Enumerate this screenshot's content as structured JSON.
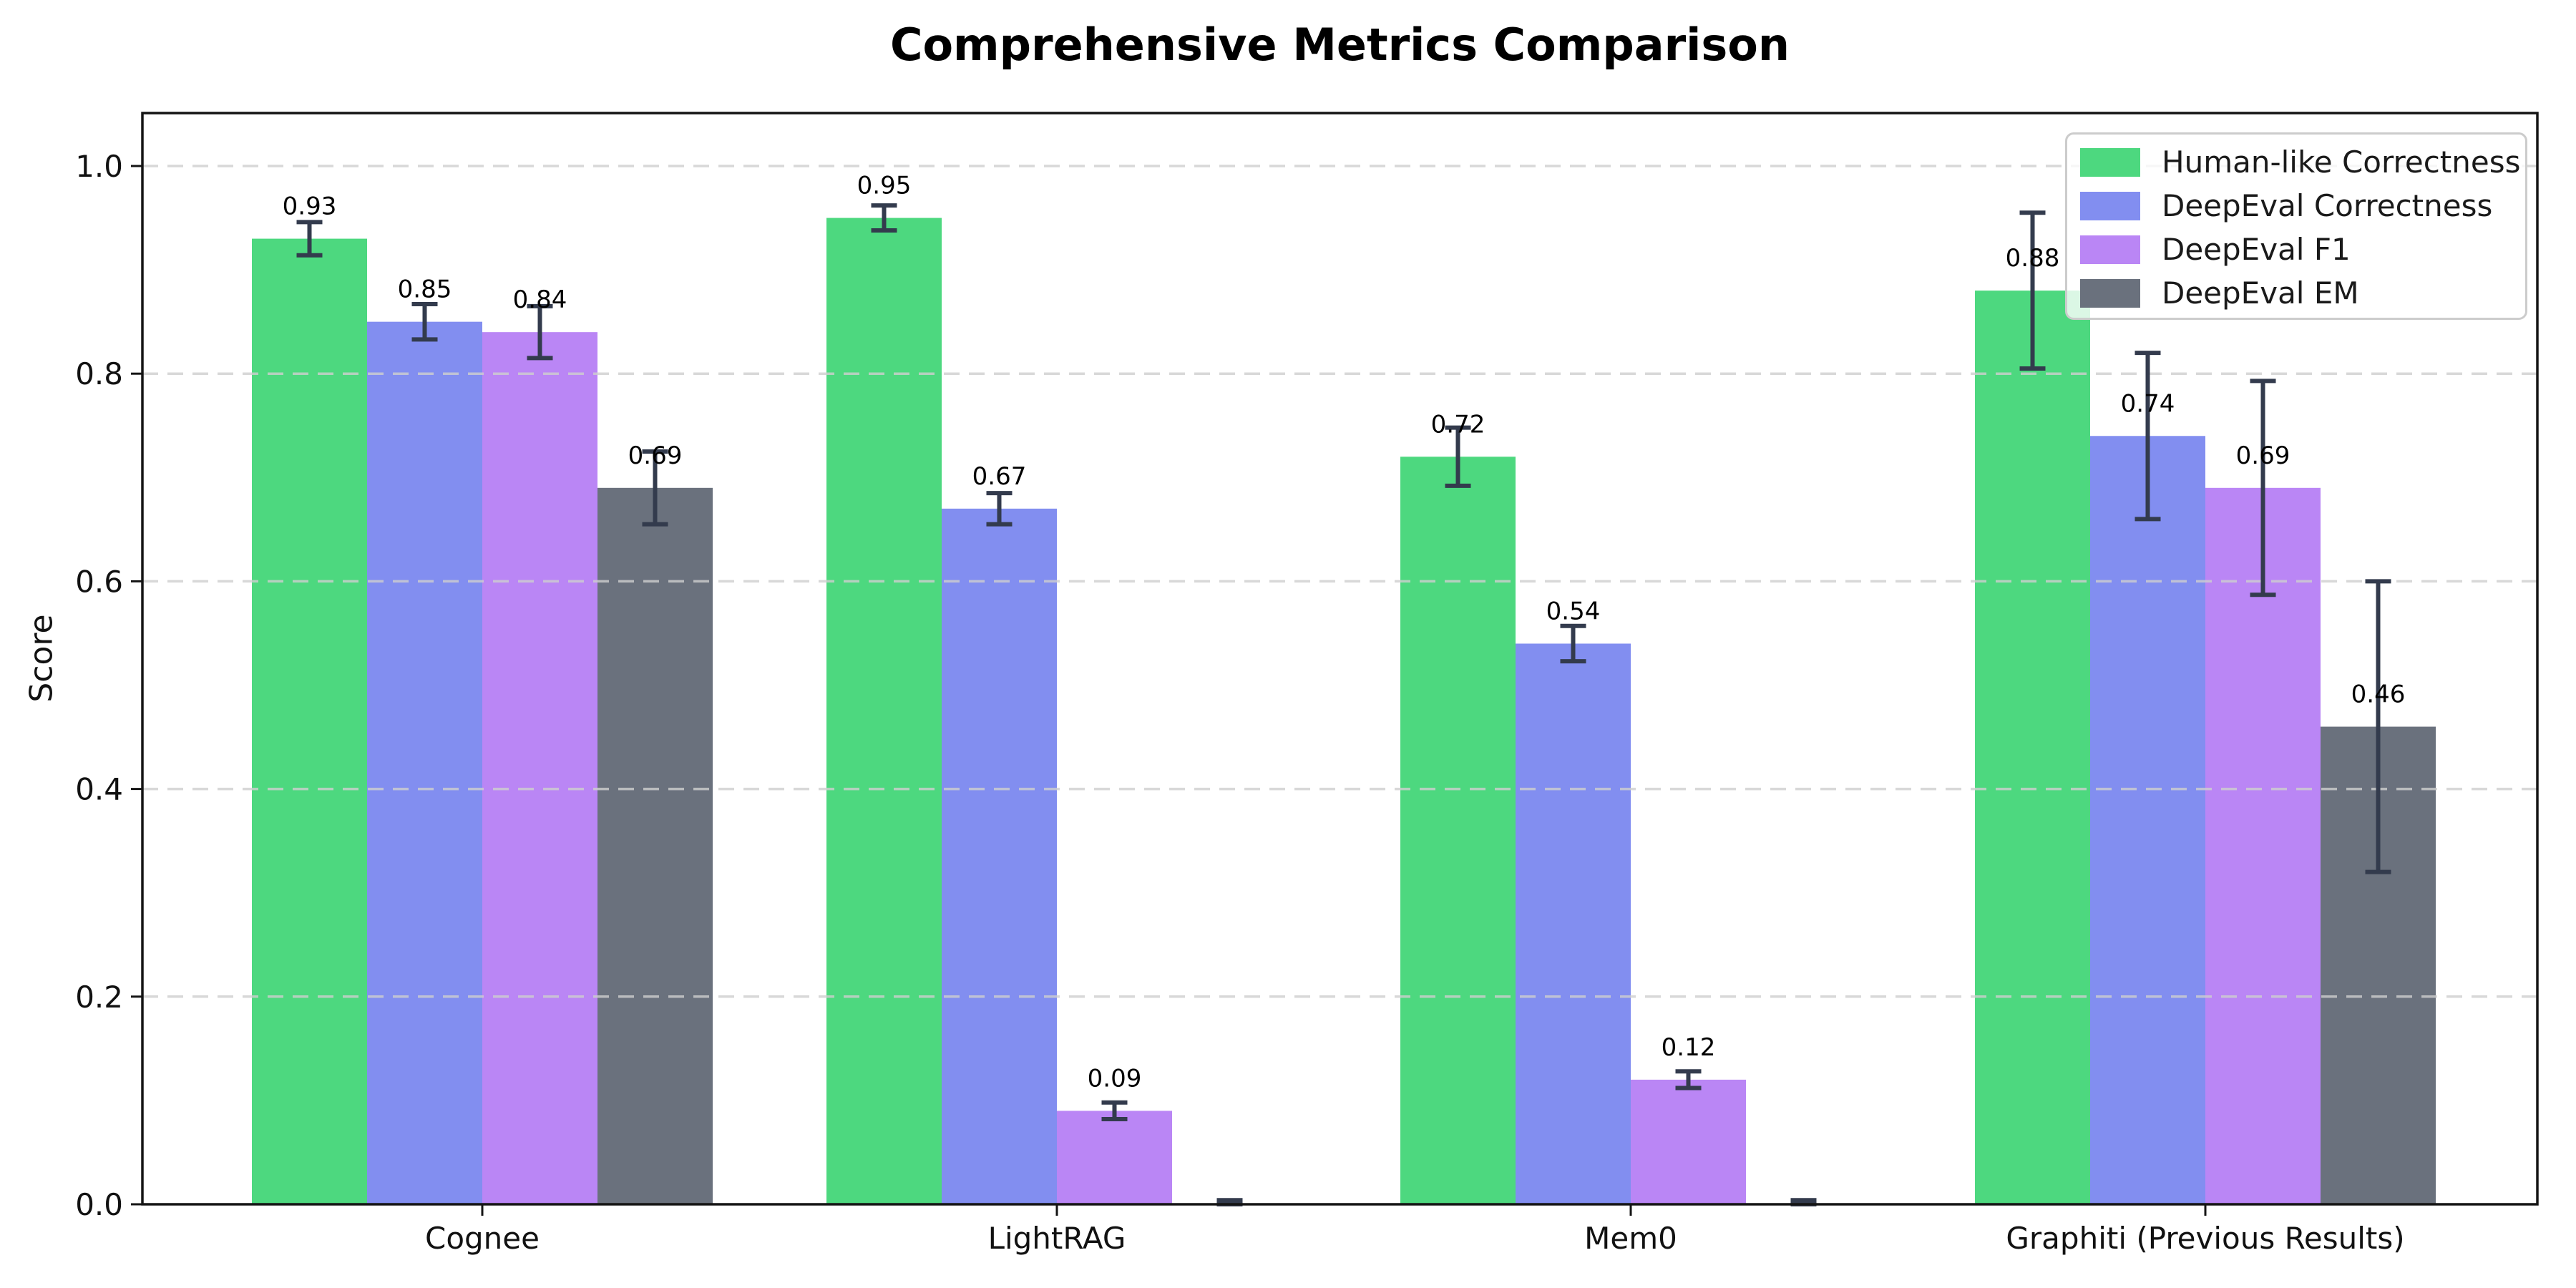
{
  "chart_data": {
    "type": "bar",
    "title": "Comprehensive Metrics Comparison",
    "xlabel": "",
    "ylabel": "Score",
    "categories": [
      "Cognee",
      "LightRAG",
      "Mem0",
      "Graphiti (Previous Results)"
    ],
    "series": [
      {
        "name": "Human-like Correctness",
        "color": "#4DD87F",
        "values": [
          0.93,
          0.95,
          0.72,
          0.88
        ],
        "errors": [
          0.016,
          0.012,
          0.028,
          0.075
        ],
        "labels": [
          "0.93",
          "0.95",
          "0.72",
          "0.88"
        ]
      },
      {
        "name": "DeepEval Correctness",
        "color": "#828EF0",
        "values": [
          0.85,
          0.67,
          0.54,
          0.74
        ],
        "errors": [
          0.017,
          0.015,
          0.017,
          0.08
        ],
        "labels": [
          "0.85",
          "0.67",
          "0.54",
          "0.74"
        ]
      },
      {
        "name": "DeepEval F1",
        "color": "#BA86F5",
        "values": [
          0.84,
          0.09,
          0.12,
          0.69
        ],
        "errors": [
          0.025,
          0.008,
          0.008,
          0.103
        ],
        "labels": [
          "0.84",
          "0.09",
          "0.12",
          "0.69"
        ]
      },
      {
        "name": "DeepEval EM",
        "color": "#6A717D",
        "values": [
          0.69,
          0.0,
          0.0,
          0.46
        ],
        "errors": [
          0.035,
          0.004,
          0.004,
          0.14
        ],
        "labels": [
          "0.69",
          null,
          null,
          "0.46"
        ]
      }
    ],
    "yticks": [
      0.0,
      0.2,
      0.4,
      0.6,
      0.8,
      1.0
    ],
    "ytick_labels": [
      "0.0",
      "0.2",
      "0.4",
      "0.6",
      "0.8",
      "1.0"
    ],
    "ylim": [
      0,
      1.05
    ],
    "grid": "horizontal-dashed",
    "grid_above_bars": true,
    "legend_position": "upper right",
    "bar_label_position": "above-bar-top",
    "colors": {
      "error_bar": "#333B4D",
      "grid": "#CFCFCF",
      "spine": "#141414",
      "tick_text": "#111111",
      "bar_label_text": "#000000",
      "legend_bg": "rgba(255,255,255,0.8)",
      "legend_border": "#CCCCCC"
    }
  }
}
